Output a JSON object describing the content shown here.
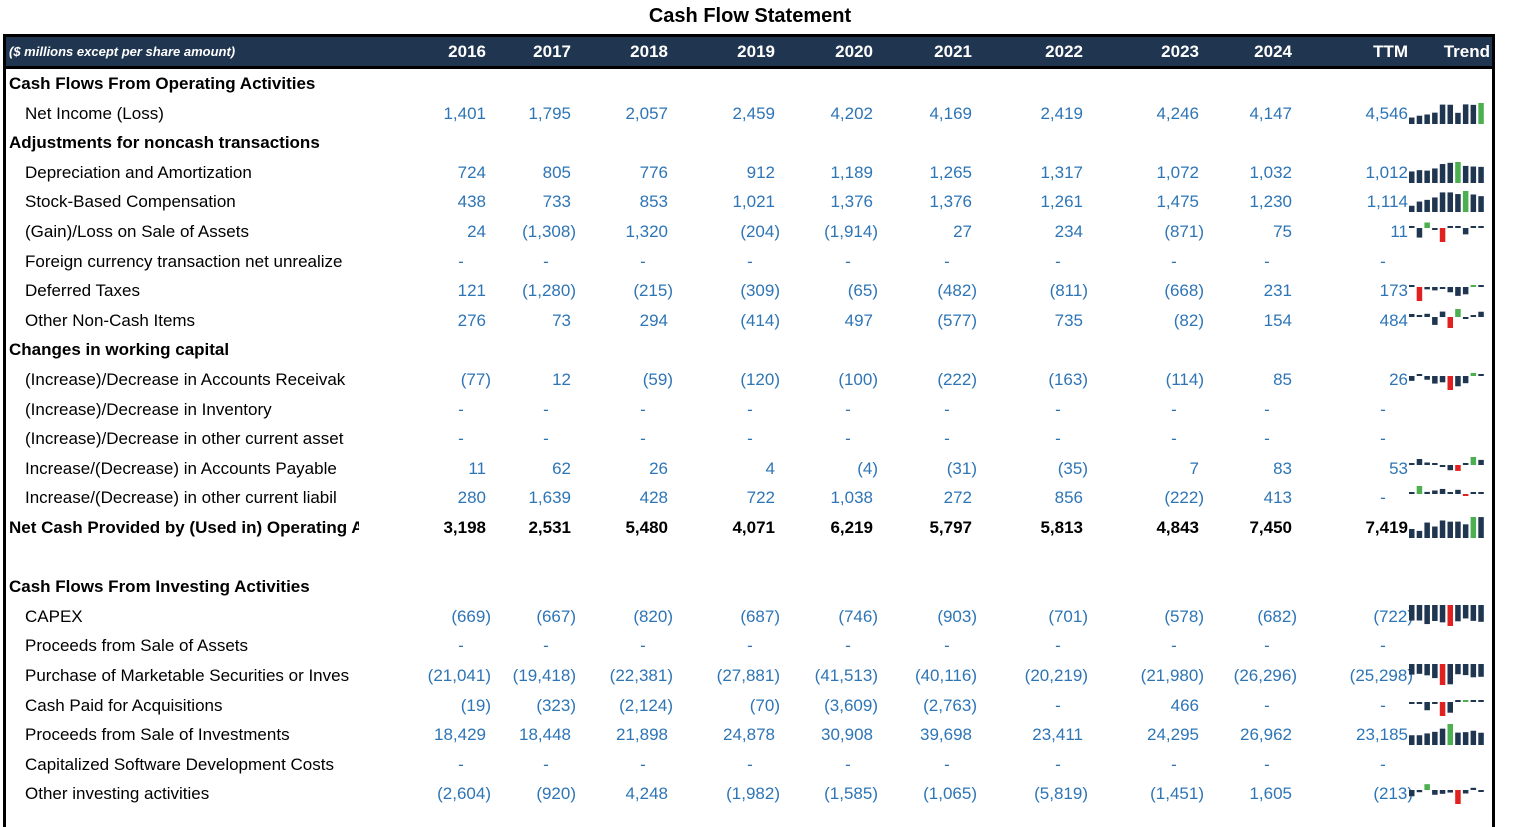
{
  "title": "Cash Flow Statement",
  "header": {
    "unit_label": "($ millions except per share amount)",
    "columns": [
      "2016",
      "2017",
      "2018",
      "2019",
      "2020",
      "2021",
      "2022",
      "2023",
      "2024",
      "TTM"
    ],
    "trend_label": "Trend"
  },
  "colors": {
    "header_bg": "#1f3550",
    "value_blue": "#2e75b6",
    "bar_dark": "#1f3550",
    "bar_green": "#4caf50",
    "bar_red": "#e0211f"
  },
  "rows": [
    {
      "label": "Cash Flows From Operating Activities",
      "type": "section"
    },
    {
      "label": "Net Income (Loss)",
      "type": "item",
      "values": [
        "1,401",
        "1,795",
        "2,057",
        "2,459",
        "4,202",
        "4,169",
        "2,419",
        "4,246",
        "4,147",
        "4,546"
      ],
      "trend": [
        1401,
        1795,
        2057,
        2459,
        4202,
        4169,
        2419,
        4246,
        4147,
        4546
      ]
    },
    {
      "label": "Adjustments for noncash transactions",
      "type": "section"
    },
    {
      "label": "Depreciation and Amortization",
      "type": "item",
      "values": [
        "724",
        "805",
        "776",
        "912",
        "1,189",
        "1,265",
        "1,317",
        "1,072",
        "1,032",
        "1,012"
      ],
      "trend": [
        724,
        805,
        776,
        912,
        1189,
        1265,
        1317,
        1072,
        1032,
        1012
      ]
    },
    {
      "label": "Stock-Based Compensation",
      "type": "item",
      "values": [
        "438",
        "733",
        "853",
        "1,021",
        "1,376",
        "1,376",
        "1,261",
        "1,475",
        "1,230",
        "1,114"
      ],
      "trend": [
        438,
        733,
        853,
        1021,
        1376,
        1376,
        1261,
        1475,
        1230,
        1114
      ]
    },
    {
      "label": "(Gain)/Loss on Sale of Assets",
      "type": "item",
      "values": [
        "24",
        "(1,308)",
        "1,320",
        "(204)",
        "(1,914)",
        "27",
        "234",
        "(871)",
        "75",
        "11"
      ],
      "trend": [
        24,
        -1308,
        1320,
        -204,
        -1914,
        27,
        234,
        -871,
        75,
        11
      ]
    },
    {
      "label": "Foreign currency transaction net unrealize",
      "type": "item",
      "values": [
        "-",
        "-",
        "-",
        "-",
        "-",
        "-",
        "-",
        "-",
        "-",
        "-"
      ],
      "trend": []
    },
    {
      "label": "Deferred Taxes",
      "type": "item",
      "values": [
        "121",
        "(1,280)",
        "(215)",
        "(309)",
        "(65)",
        "(482)",
        "(811)",
        "(668)",
        "231",
        "173"
      ],
      "trend": [
        121,
        -1280,
        -215,
        -309,
        -65,
        -482,
        -811,
        -668,
        231,
        173
      ]
    },
    {
      "label": "Other Non-Cash Items",
      "type": "item",
      "values": [
        "276",
        "73",
        "294",
        "(414)",
        "497",
        "(577)",
        "735",
        "(82)",
        "154",
        "484"
      ],
      "trend": [
        276,
        73,
        294,
        -414,
        497,
        -577,
        735,
        -82,
        154,
        484
      ]
    },
    {
      "label": "Changes in working capital",
      "type": "section"
    },
    {
      "label": "(Increase)/Decrease in Accounts Receivak",
      "type": "item",
      "values": [
        "(77)",
        "12",
        "(59)",
        "(120)",
        "(100)",
        "(222)",
        "(163)",
        "(114)",
        "85",
        "26"
      ],
      "trend": [
        -77,
        12,
        -59,
        -120,
        -100,
        -222,
        -163,
        -114,
        85,
        26
      ]
    },
    {
      "label": "(Increase)/Decrease in Inventory",
      "type": "item",
      "values": [
        "-",
        "-",
        "-",
        "-",
        "-",
        "-",
        "-",
        "-",
        "-",
        "-"
      ],
      "trend": []
    },
    {
      "label": "(Increase)/Decrease in other current asset",
      "type": "item",
      "values": [
        "-",
        "-",
        "-",
        "-",
        "-",
        "-",
        "-",
        "-",
        "-",
        "-"
      ],
      "trend": []
    },
    {
      "label": "Increase/(Decrease) in Accounts Payable",
      "type": "item",
      "values": [
        "11",
        "62",
        "26",
        "4",
        "(4)",
        "(31)",
        "(35)",
        "7",
        "83",
        "53"
      ],
      "trend": [
        11,
        62,
        26,
        4,
        -4,
        -31,
        -35,
        7,
        83,
        53
      ]
    },
    {
      "label": "Increase/(Decrease) in other current liabil",
      "type": "item",
      "values": [
        "280",
        "1,639",
        "428",
        "722",
        "1,038",
        "272",
        "856",
        "(222)",
        "413",
        "-"
      ],
      "trend": [
        280,
        1639,
        428,
        722,
        1038,
        272,
        856,
        -222,
        413,
        0
      ]
    },
    {
      "label": "Net Cash Provided by (Used in) Operating A",
      "type": "total",
      "values": [
        "3,198",
        "2,531",
        "5,480",
        "4,071",
        "6,219",
        "5,797",
        "5,813",
        "4,843",
        "7,450",
        "7,419"
      ],
      "trend": [
        3198,
        2531,
        5480,
        4071,
        6219,
        5797,
        5813,
        4843,
        7450,
        7419
      ]
    },
    {
      "label": "",
      "type": "blank"
    },
    {
      "label": "Cash Flows From Investing Activities",
      "type": "section"
    },
    {
      "label": "CAPEX",
      "type": "item",
      "values": [
        "(669)",
        "(667)",
        "(820)",
        "(687)",
        "(746)",
        "(903)",
        "(701)",
        "(578)",
        "(682)",
        "(722)"
      ],
      "trend": [
        -669,
        -667,
        -820,
        -687,
        -746,
        -903,
        -701,
        -578,
        -682,
        -722
      ]
    },
    {
      "label": "Proceeds from Sale of Assets",
      "type": "item",
      "values": [
        "-",
        "-",
        "-",
        "-",
        "-",
        "-",
        "-",
        "-",
        "-",
        "-"
      ],
      "trend": []
    },
    {
      "label": "Purchase of Marketable Securities or Inves",
      "type": "item",
      "values": [
        "(21,041)",
        "(19,418)",
        "(22,381)",
        "(27,881)",
        "(41,513)",
        "(40,116)",
        "(20,219)",
        "(21,980)",
        "(26,296)",
        "(25,298)"
      ],
      "trend": [
        -21041,
        -19418,
        -22381,
        -27881,
        -41513,
        -40116,
        -20219,
        -21980,
        -26296,
        -25298
      ]
    },
    {
      "label": "Cash Paid for Acquisitions",
      "type": "item",
      "values": [
        "(19)",
        "(323)",
        "(2,124)",
        "(70)",
        "(3,609)",
        "(2,763)",
        "-",
        "466",
        "-",
        "-"
      ],
      "trend": [
        -19,
        -323,
        -2124,
        -70,
        -3609,
        -2763,
        0,
        466,
        0,
        0
      ]
    },
    {
      "label": "Proceeds from Sale of Investments",
      "type": "item",
      "values": [
        "18,429",
        "18,448",
        "21,898",
        "24,878",
        "30,908",
        "39,698",
        "23,411",
        "24,295",
        "26,962",
        "23,185"
      ],
      "trend": [
        18429,
        18448,
        21898,
        24878,
        30908,
        39698,
        23411,
        24295,
        26962,
        23185
      ]
    },
    {
      "label": "Capitalized Software Development Costs",
      "type": "item",
      "values": [
        "-",
        "-",
        "-",
        "-",
        "-",
        "-",
        "-",
        "-",
        "-",
        "-"
      ],
      "trend": []
    },
    {
      "label": "Other investing activities",
      "type": "item",
      "values": [
        "(2,604)",
        "(920)",
        "4,248",
        "(1,982)",
        "(1,585)",
        "(1,065)",
        "(5,819)",
        "(1,451)",
        "1,605",
        "(213)"
      ],
      "trend": [
        -2604,
        -920,
        4248,
        -1982,
        -1585,
        -1065,
        -5819,
        -1451,
        1605,
        -213
      ]
    }
  ]
}
